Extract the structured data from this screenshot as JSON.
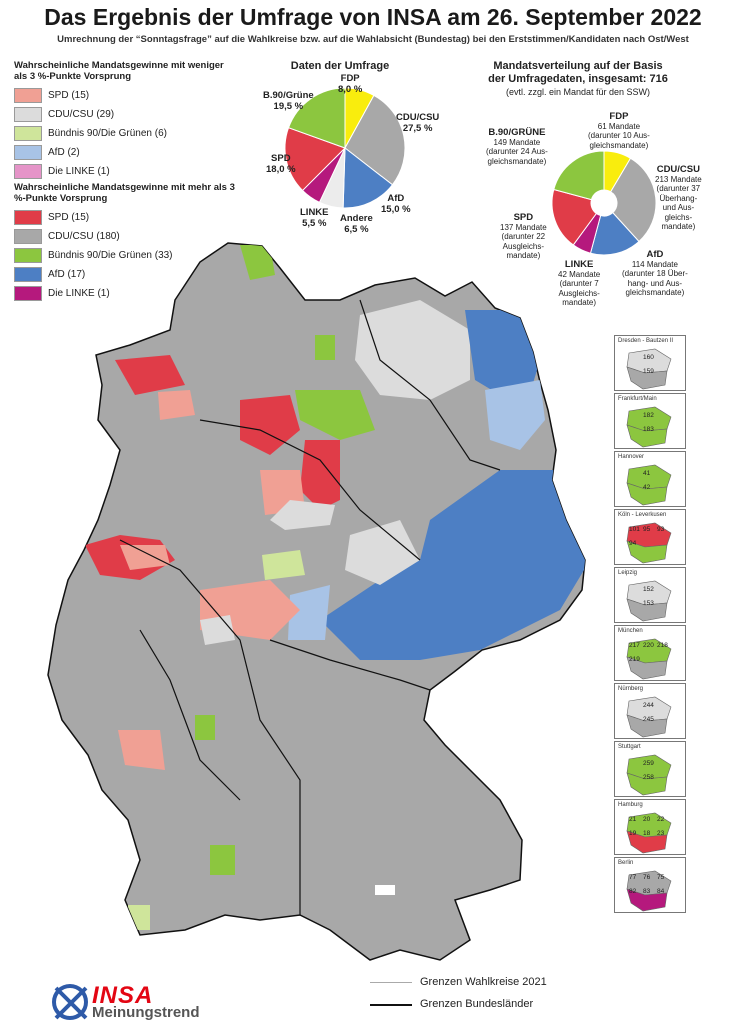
{
  "title": "Das Ergebnis der Umfrage von INSA am 26. September 2022",
  "subtitle": "Umrechnung der “Sonntagsfrage” auf die Wahlkreise bzw. auf die Wahlabsicht (Bundestag) bei den Erststimmen/Kandidaten nach Ost/West",
  "colors": {
    "spd_strong": "#e03c48",
    "spd_light": "#f0a094",
    "cdu_strong": "#a8a8a8",
    "cdu_light": "#dcdcdc",
    "gruene_strong": "#8cc63f",
    "gruene_light": "#cfe59b",
    "afd_strong": "#4d7fc4",
    "afd_light": "#a8c3e6",
    "linke_strong": "#b5197d",
    "linke_light": "#e594c8",
    "fdp": "#f9ed0d",
    "andere": "#ececec"
  },
  "legend_weak": {
    "heading": "Wahrscheinliche Mandatsgewinne mit weniger als 3 %-Punkte Vorsprung",
    "items": [
      {
        "label": "SPD (15)",
        "color": "#f0a094"
      },
      {
        "label": "CDU/CSU (29)",
        "color": "#dcdcdc"
      },
      {
        "label": "Bündnis 90/Die Grünen (6)",
        "color": "#cfe59b"
      },
      {
        "label": "AfD (2)",
        "color": "#a8c3e6"
      },
      {
        "label": "Die LINKE (1)",
        "color": "#e594c8"
      }
    ]
  },
  "legend_strong": {
    "heading": "Wahrscheinliche Mandatsgewinne mit mehr als 3 %-Punkte Vorsprung",
    "items": [
      {
        "label": "SPD (15)",
        "color": "#e03c48"
      },
      {
        "label": "CDU/CSU (180)",
        "color": "#a8a8a8"
      },
      {
        "label": "Bündnis 90/Die Grünen (33)",
        "color": "#8cc63f"
      },
      {
        "label": "AfD (17)",
        "color": "#4d7fc4"
      },
      {
        "label": "Die LINKE (1)",
        "color": "#b5197d"
      }
    ]
  },
  "poll": {
    "title": "Daten der Umfrage",
    "labels": {
      "fdp": {
        "name": "FDP",
        "value": "8,0 %"
      },
      "cdu": {
        "name": "CDU/CSU",
        "value": "27,5 %"
      },
      "afd": {
        "name": "AfD",
        "value": "15,0 %"
      },
      "andere": {
        "name": "Andere",
        "value": "6,5 %"
      },
      "linke": {
        "name": "LINKE",
        "value": "5,5 %"
      },
      "spd": {
        "name": "SPD",
        "value": "18,0 %"
      },
      "gruene": {
        "name": "B.90/Grüne",
        "value": "19,5 %"
      }
    }
  },
  "seats": {
    "title_line1": "Mandatsverteilung auf der Basis",
    "title_line2": "der Umfragedaten, insgesamt: 716",
    "title_line3": "(evtl. zzgl. ein Mandat für den SSW)",
    "labels": {
      "fdp": {
        "name": "FDP",
        "l1": "61 Mandate",
        "l2": "(darunter 10 Aus-",
        "l3": "gleichsmandate)"
      },
      "cdu": {
        "name": "CDU/CSU",
        "l1": "213 Mandate",
        "l2": "(darunter 37",
        "l3": "Überhang-",
        "l4": "und Aus-",
        "l5": "gleichs-",
        "l6": "mandate)"
      },
      "afd": {
        "name": "AfD",
        "l1": "114 Mandate",
        "l2": "(darunter 18 Über-",
        "l3": "hang- und Aus-",
        "l4": "gleichsmandate)"
      },
      "linke": {
        "name": "LINKE",
        "l1": "42 Mandate",
        "l2": "(darunter 7",
        "l3": "Ausgleichs-",
        "l4": "mandate)"
      },
      "spd": {
        "name": "SPD",
        "l1": "137 Mandate",
        "l2": "(darunter 22",
        "l3": "Ausgleichs-",
        "l4": "mandate)"
      },
      "gruene": {
        "name": "B.90/GRÜNE",
        "l1": "149 Mandate",
        "l2": "(darunter 24 Aus-",
        "l3": "gleichsmandate)"
      }
    }
  },
  "insets": [
    {
      "name": "Dresden - Bautzen II",
      "numbers": [
        "160",
        "159"
      ]
    },
    {
      "name": "Frankfurt/Main",
      "numbers": [
        "182",
        "183"
      ]
    },
    {
      "name": "Hannover",
      "numbers": [
        "41",
        "42"
      ]
    },
    {
      "name": "Köln - Leverkusen",
      "numbers": [
        "101",
        "95",
        "93",
        "94"
      ]
    },
    {
      "name": "Leipzig",
      "numbers": [
        "152",
        "153"
      ]
    },
    {
      "name": "München",
      "numbers": [
        "217",
        "220",
        "218",
        "219"
      ]
    },
    {
      "name": "Nürnberg",
      "numbers": [
        "244",
        "245"
      ]
    },
    {
      "name": "Stuttgart",
      "numbers": [
        "259",
        "258"
      ]
    },
    {
      "name": "Hamburg",
      "numbers": [
        "21",
        "20",
        "22",
        "19",
        "18",
        "23"
      ]
    },
    {
      "name": "Berlin",
      "numbers": [
        "77",
        "76",
        "75",
        "82",
        "83",
        "84"
      ]
    }
  ],
  "map_legend": {
    "wahlkreise": "Grenzen Wahlkreise 2021",
    "bundeslaender": "Grenzen Bundesländer"
  },
  "logo": {
    "brand": "INSA",
    "tagline": "Meinungstrend"
  }
}
